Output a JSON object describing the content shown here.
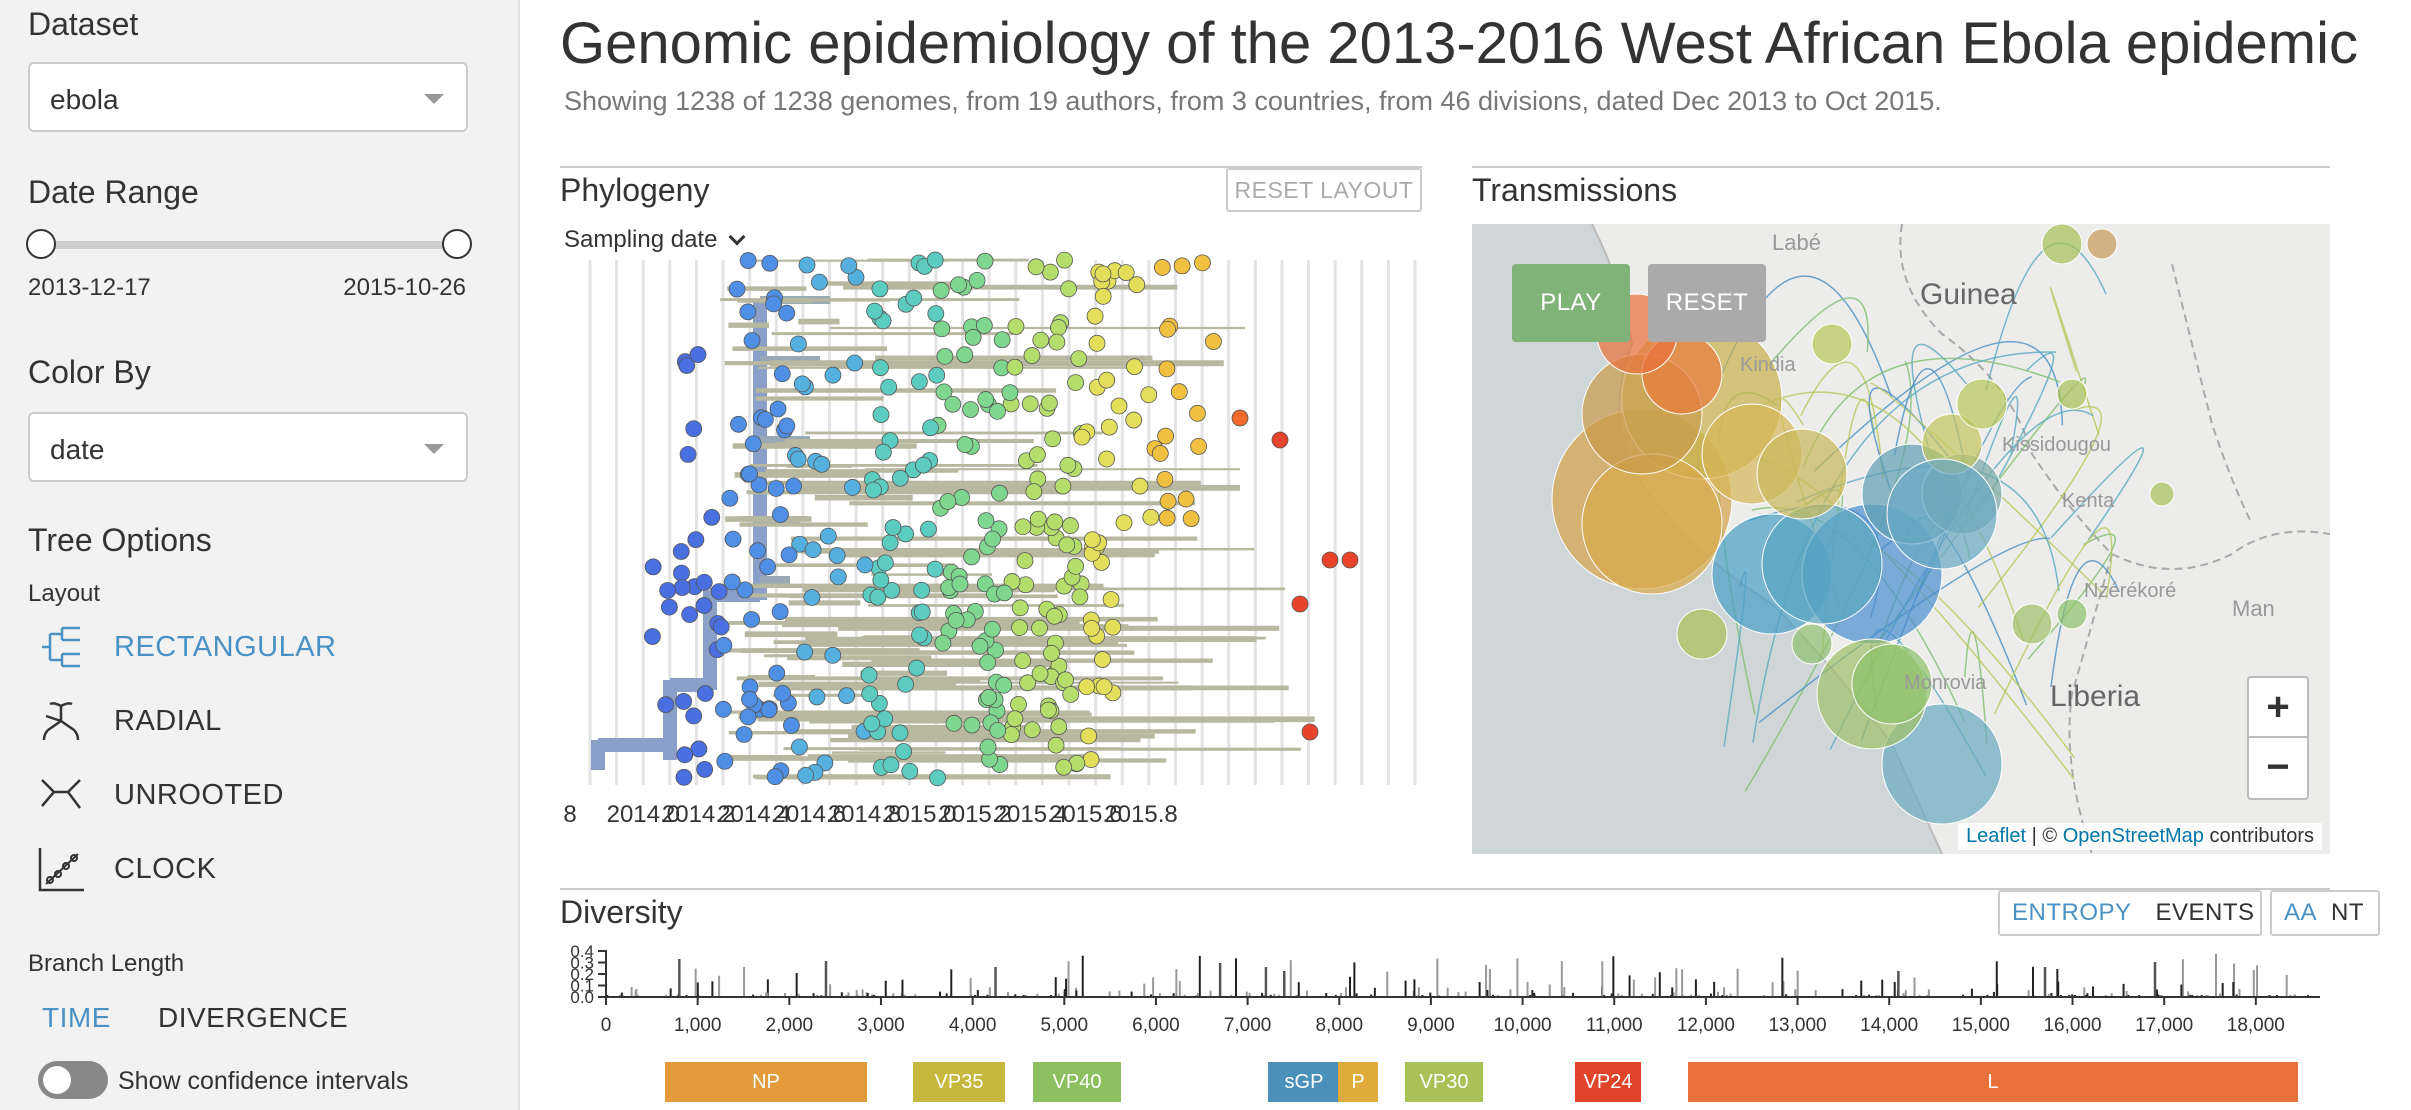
{
  "sidebar": {
    "dataset_heading": "Dataset",
    "dataset_value": "ebola",
    "date_range_heading": "Date Range",
    "date_start": "2013-12-17",
    "date_end": "2015-10-26",
    "color_by_heading": "Color By",
    "color_by_value": "date",
    "tree_options_heading": "Tree Options",
    "layout_label": "Layout",
    "layouts": [
      {
        "label": "RECTANGULAR",
        "active": true,
        "icon": "rectangular-tree-icon"
      },
      {
        "label": "RADIAL",
        "active": false,
        "icon": "radial-tree-icon"
      },
      {
        "label": "UNROOTED",
        "active": false,
        "icon": "unrooted-tree-icon"
      },
      {
        "label": "CLOCK",
        "active": false,
        "icon": "clock-tree-icon"
      }
    ],
    "branch_length_label": "Branch Length",
    "branch_time": "TIME",
    "branch_divergence": "DIVERGENCE",
    "confidence_label": "Show confidence intervals"
  },
  "header": {
    "title": "Genomic epidemiology of the 2013-2016 West African Ebola epidemic",
    "subtitle": "Showing 1238 of 1238 genomes, from 19 authors, from 3 countries, from 46 divisions, dated Dec 2013 to Oct 2015."
  },
  "phylogeny": {
    "title": "Phylogeny",
    "reset_label": "RESET LAYOUT",
    "sampling_label": "Sampling date",
    "axis_ticks": [
      "8",
      "2014.0",
      "2014.2",
      "2014.4",
      "2014.6",
      "2014.8",
      "2015.0",
      "2015.2",
      "2015.4",
      "2015.6",
      "2015.8"
    ]
  },
  "transmissions": {
    "title": "Transmissions",
    "play_label": "PLAY",
    "reset_label": "RESET",
    "zoom_in": "+",
    "zoom_out": "−",
    "place_labels": [
      "Labé",
      "Guinea",
      "Kindia",
      "Kissidougou",
      "Nzérékoré",
      "Man",
      "Liberia",
      "Monrovia",
      "Kenta"
    ],
    "attrib_leaflet": "Leaflet",
    "attrib_sep": " | © ",
    "attrib_osm": "OpenStreetMap",
    "attrib_tail": " contributors"
  },
  "diversity": {
    "title": "Diversity",
    "entropy_label": "ENTROPY",
    "events_label": "EVENTS",
    "aa_label": "AA",
    "nt_label": "NT",
    "y_ticks": [
      "0.0",
      "0.1",
      "0.2",
      "0.3",
      "0.4"
    ],
    "x_ticks": [
      "0",
      "1,000",
      "2,000",
      "3,000",
      "4,000",
      "5,000",
      "6,000",
      "7,000",
      "8,000",
      "9,000",
      "10,000",
      "11,000",
      "12,000",
      "13,000",
      "14,000",
      "15,000",
      "16,000",
      "17,000",
      "18,000"
    ],
    "genes": [
      {
        "name": "NP",
        "color": "#e39a3a"
      },
      {
        "name": "VP35",
        "color": "#c6b73e"
      },
      {
        "name": "VP40",
        "color": "#8bbf5f"
      },
      {
        "name": "sGP",
        "color": "#4a90b8"
      },
      {
        "name": "P",
        "color": "#dfab3a"
      },
      {
        "name": "VP30",
        "color": "#a8c257"
      },
      {
        "name": "VP24",
        "color": "#e0452c"
      },
      {
        "name": "L",
        "color": "#e8703a"
      }
    ]
  },
  "colors": {
    "accent": "#4a91c4",
    "play": "#7fb377",
    "reset": "#aaaaaa"
  }
}
